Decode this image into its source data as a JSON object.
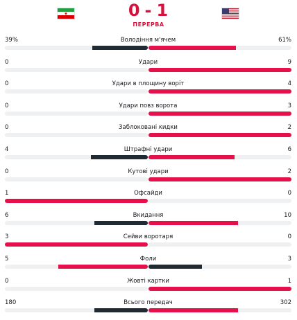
{
  "match": {
    "home_score": "0",
    "away_score": "1",
    "separator": "-",
    "status": "ПЕРЕРВА",
    "home_flag_icon": "iran-flag-icon",
    "away_flag_icon": "usa-flag-icon"
  },
  "colors": {
    "accent": "#d4123d",
    "home_bar": "#1f2a33",
    "away_bar": "#e4114a",
    "bar_track": "#eff0f2"
  },
  "stats": [
    {
      "name": "Володіння м'ячем",
      "home": "39%",
      "away": "61%",
      "home_share": 0.39,
      "away_share": 0.61,
      "home_color": "#1f2a33",
      "away_color": "#e4114a"
    },
    {
      "name": "Удари",
      "home": "0",
      "away": "9",
      "home_share": 0,
      "away_share": 1,
      "home_color": "#1f2a33",
      "away_color": "#e4114a"
    },
    {
      "name": "Удари в площину воріт",
      "home": "0",
      "away": "4",
      "home_share": 0,
      "away_share": 1,
      "home_color": "#1f2a33",
      "away_color": "#e4114a"
    },
    {
      "name": "Удари повз ворота",
      "home": "0",
      "away": "3",
      "home_share": 0,
      "away_share": 1,
      "home_color": "#1f2a33",
      "away_color": "#e4114a"
    },
    {
      "name": "Заблоковані кидки",
      "home": "0",
      "away": "2",
      "home_share": 0,
      "away_share": 1,
      "home_color": "#1f2a33",
      "away_color": "#e4114a"
    },
    {
      "name": "Штрафні удари",
      "home": "4",
      "away": "6",
      "home_share": 0.4,
      "away_share": 0.6,
      "home_color": "#1f2a33",
      "away_color": "#e4114a"
    },
    {
      "name": "Кутові удари",
      "home": "0",
      "away": "2",
      "home_share": 0,
      "away_share": 1,
      "home_color": "#1f2a33",
      "away_color": "#e4114a"
    },
    {
      "name": "Офсайди",
      "home": "1",
      "away": "0",
      "home_share": 1,
      "away_share": 0,
      "home_color": "#e4114a",
      "away_color": "#1f2a33"
    },
    {
      "name": "Вкидання",
      "home": "6",
      "away": "10",
      "home_share": 0.375,
      "away_share": 0.625,
      "home_color": "#1f2a33",
      "away_color": "#e4114a"
    },
    {
      "name": "Сейви воротаря",
      "home": "3",
      "away": "0",
      "home_share": 1,
      "away_share": 0,
      "home_color": "#e4114a",
      "away_color": "#1f2a33"
    },
    {
      "name": "Фоли",
      "home": "5",
      "away": "3",
      "home_share": 0.625,
      "away_share": 0.375,
      "home_color": "#e4114a",
      "away_color": "#1f2a33"
    },
    {
      "name": "Жовті картки",
      "home": "0",
      "away": "1",
      "home_share": 0,
      "away_share": 1,
      "home_color": "#1f2a33",
      "away_color": "#e4114a"
    },
    {
      "name": "Всього передач",
      "home": "180",
      "away": "302",
      "home_share": 0.373,
      "away_share": 0.627,
      "home_color": "#1f2a33",
      "away_color": "#e4114a"
    }
  ]
}
